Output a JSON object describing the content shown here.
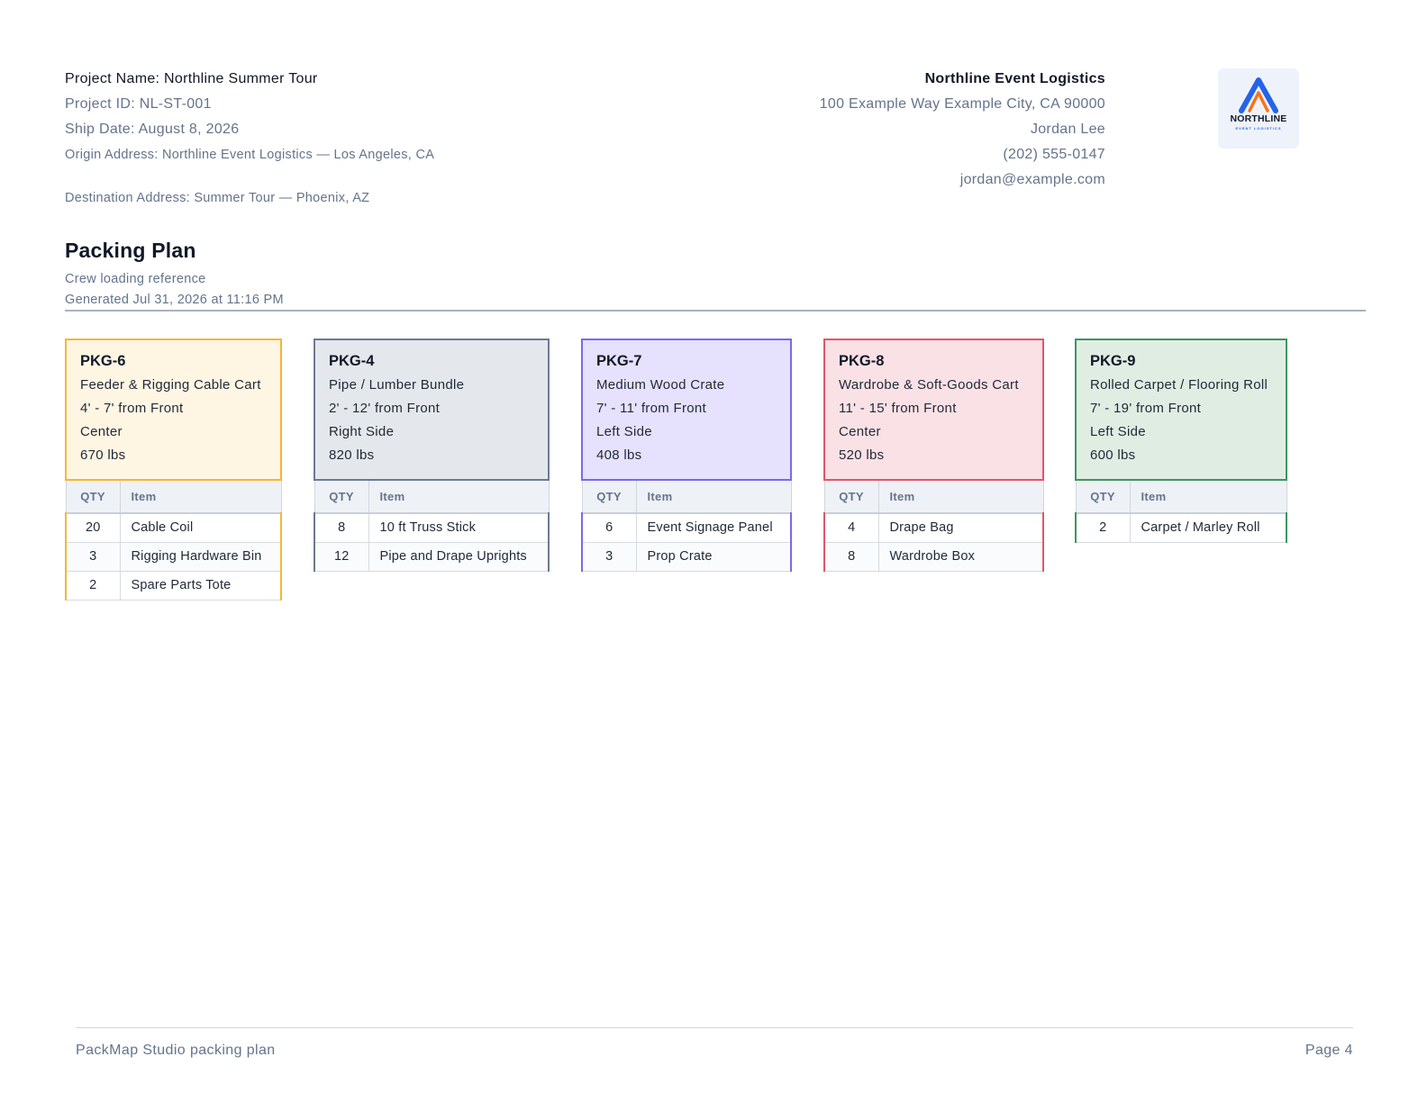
{
  "project": {
    "name": "Project Name: Northline Summer Tour",
    "id": "Project ID: NL-ST-001",
    "ship_date": "Ship Date: August 8, 2026",
    "origin": "Origin Address: Northline Event Logistics — Los Angeles, CA",
    "destination": "Destination Address: Summer Tour — Phoenix, AZ"
  },
  "company": {
    "name": "Northline Event Logistics",
    "address": "100 Example Way Example City, CA 90000",
    "contact": "Jordan Lee",
    "phone": "(202) 555-0147",
    "email": "jordan@example.com"
  },
  "logo": {
    "text": "NORTHLINE",
    "subtext": "EVENT LOGISTICS",
    "colors": {
      "blue": "#2563eb",
      "orange": "#f97316"
    }
  },
  "document": {
    "title": "Packing Plan",
    "subtitle": "Crew loading reference",
    "generated": "Generated Jul 31, 2026 at 11:16 PM"
  },
  "table_headers": {
    "qty": "QTY",
    "item": "Item"
  },
  "packages": [
    {
      "id": "PKG-6",
      "type": "Feeder & Rigging Cable Cart",
      "range": "4' - 7' from Front",
      "side": "Center",
      "weight": "670 lbs",
      "border_color": "#f5b731",
      "bg_color": "#fef5e3",
      "items": [
        {
          "qty": "20",
          "item": "Cable Coil"
        },
        {
          "qty": "3",
          "item": "Rigging Hardware Bin"
        },
        {
          "qty": "2",
          "item": "Spare Parts Tote"
        }
      ]
    },
    {
      "id": "PKG-4",
      "type": "Pipe / Lumber Bundle",
      "range": "2' - 12' from Front",
      "side": "Right Side",
      "weight": "820 lbs",
      "border_color": "#6b7a90",
      "bg_color": "#e4e8ec",
      "items": [
        {
          "qty": "8",
          "item": "10 ft Truss Stick"
        },
        {
          "qty": "12",
          "item": "Pipe and Drape Uprights"
        }
      ]
    },
    {
      "id": "PKG-7",
      "type": "Medium Wood Crate",
      "range": "7' - 11' from Front",
      "side": "Left Side",
      "weight": "408 lbs",
      "border_color": "#7b68ee",
      "bg_color": "#e6e1fc",
      "items": [
        {
          "qty": "6",
          "item": "Event Signage Panel"
        },
        {
          "qty": "3",
          "item": "Prop Crate"
        }
      ]
    },
    {
      "id": "PKG-8",
      "type": "Wardrobe & Soft-Goods Cart",
      "range": "11' - 15' from Front",
      "side": "Center",
      "weight": "520 lbs",
      "border_color": "#e0566a",
      "bg_color": "#fae1e5",
      "items": [
        {
          "qty": "4",
          "item": "Drape Bag"
        },
        {
          "qty": "8",
          "item": "Wardrobe Box"
        }
      ]
    },
    {
      "id": "PKG-9",
      "type": "Rolled Carpet / Flooring Roll",
      "range": "7' - 19' from Front",
      "side": "Left Side",
      "weight": "600 lbs",
      "border_color": "#3f9460",
      "bg_color": "#e0ede3",
      "items": [
        {
          "qty": "2",
          "item": "Carpet / Marley Roll"
        }
      ]
    }
  ],
  "footer": {
    "left": "PackMap Studio packing plan",
    "right": "Page 4"
  }
}
